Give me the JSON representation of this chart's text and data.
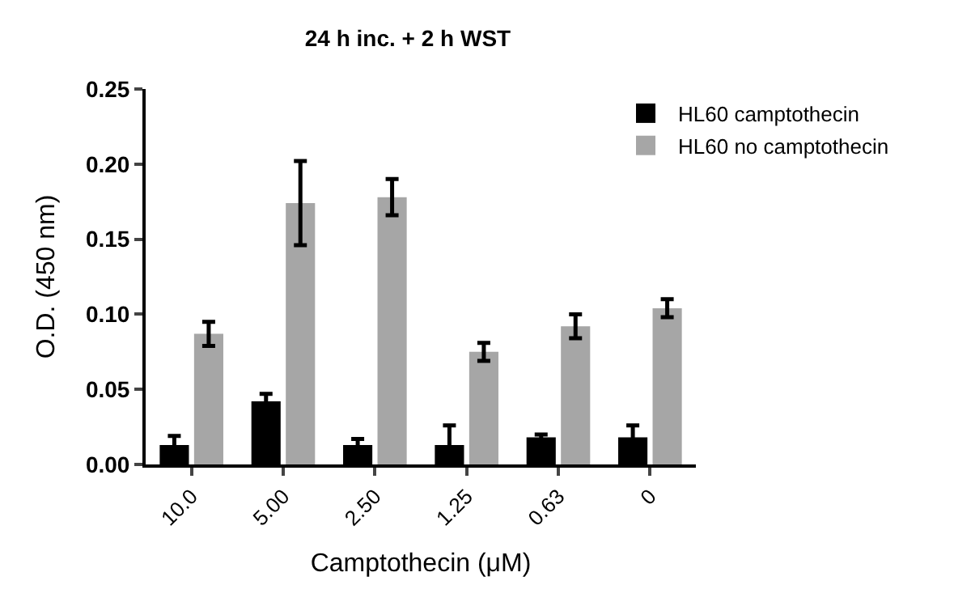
{
  "chart_data": {
    "type": "bar",
    "title": "24 h inc. + 2 h WST",
    "xlabel": "Camptothecin (μM)",
    "ylabel": "O.D. (450 nm)",
    "categories": [
      "10.0",
      "5.00",
      "2.50",
      "1.25",
      "0.63",
      "0"
    ],
    "series": [
      {
        "name": "HL60 camptothecin",
        "color": "#000000",
        "values": [
          0.013,
          0.042,
          0.013,
          0.013,
          0.018,
          0.018
        ],
        "errors": [
          0.006,
          0.005,
          0.004,
          0.013,
          0.002,
          0.008
        ]
      },
      {
        "name": "HL60 no camptothecin",
        "color": "#a6a6a6",
        "values": [
          0.087,
          0.174,
          0.178,
          0.075,
          0.092,
          0.104
        ],
        "errors": [
          0.008,
          0.028,
          0.012,
          0.006,
          0.008,
          0.006
        ]
      }
    ],
    "ylim": [
      0,
      0.25
    ],
    "yticks": [
      {
        "value": 0,
        "label": "0.00"
      },
      {
        "value": 0.05,
        "label": "0.05"
      },
      {
        "value": 0.1,
        "label": "0.10"
      },
      {
        "value": 0.15,
        "label": "0.15"
      },
      {
        "value": 0.2,
        "label": "0.20"
      },
      {
        "value": 0.25,
        "label": "0.25"
      }
    ],
    "legend": "top right"
  }
}
